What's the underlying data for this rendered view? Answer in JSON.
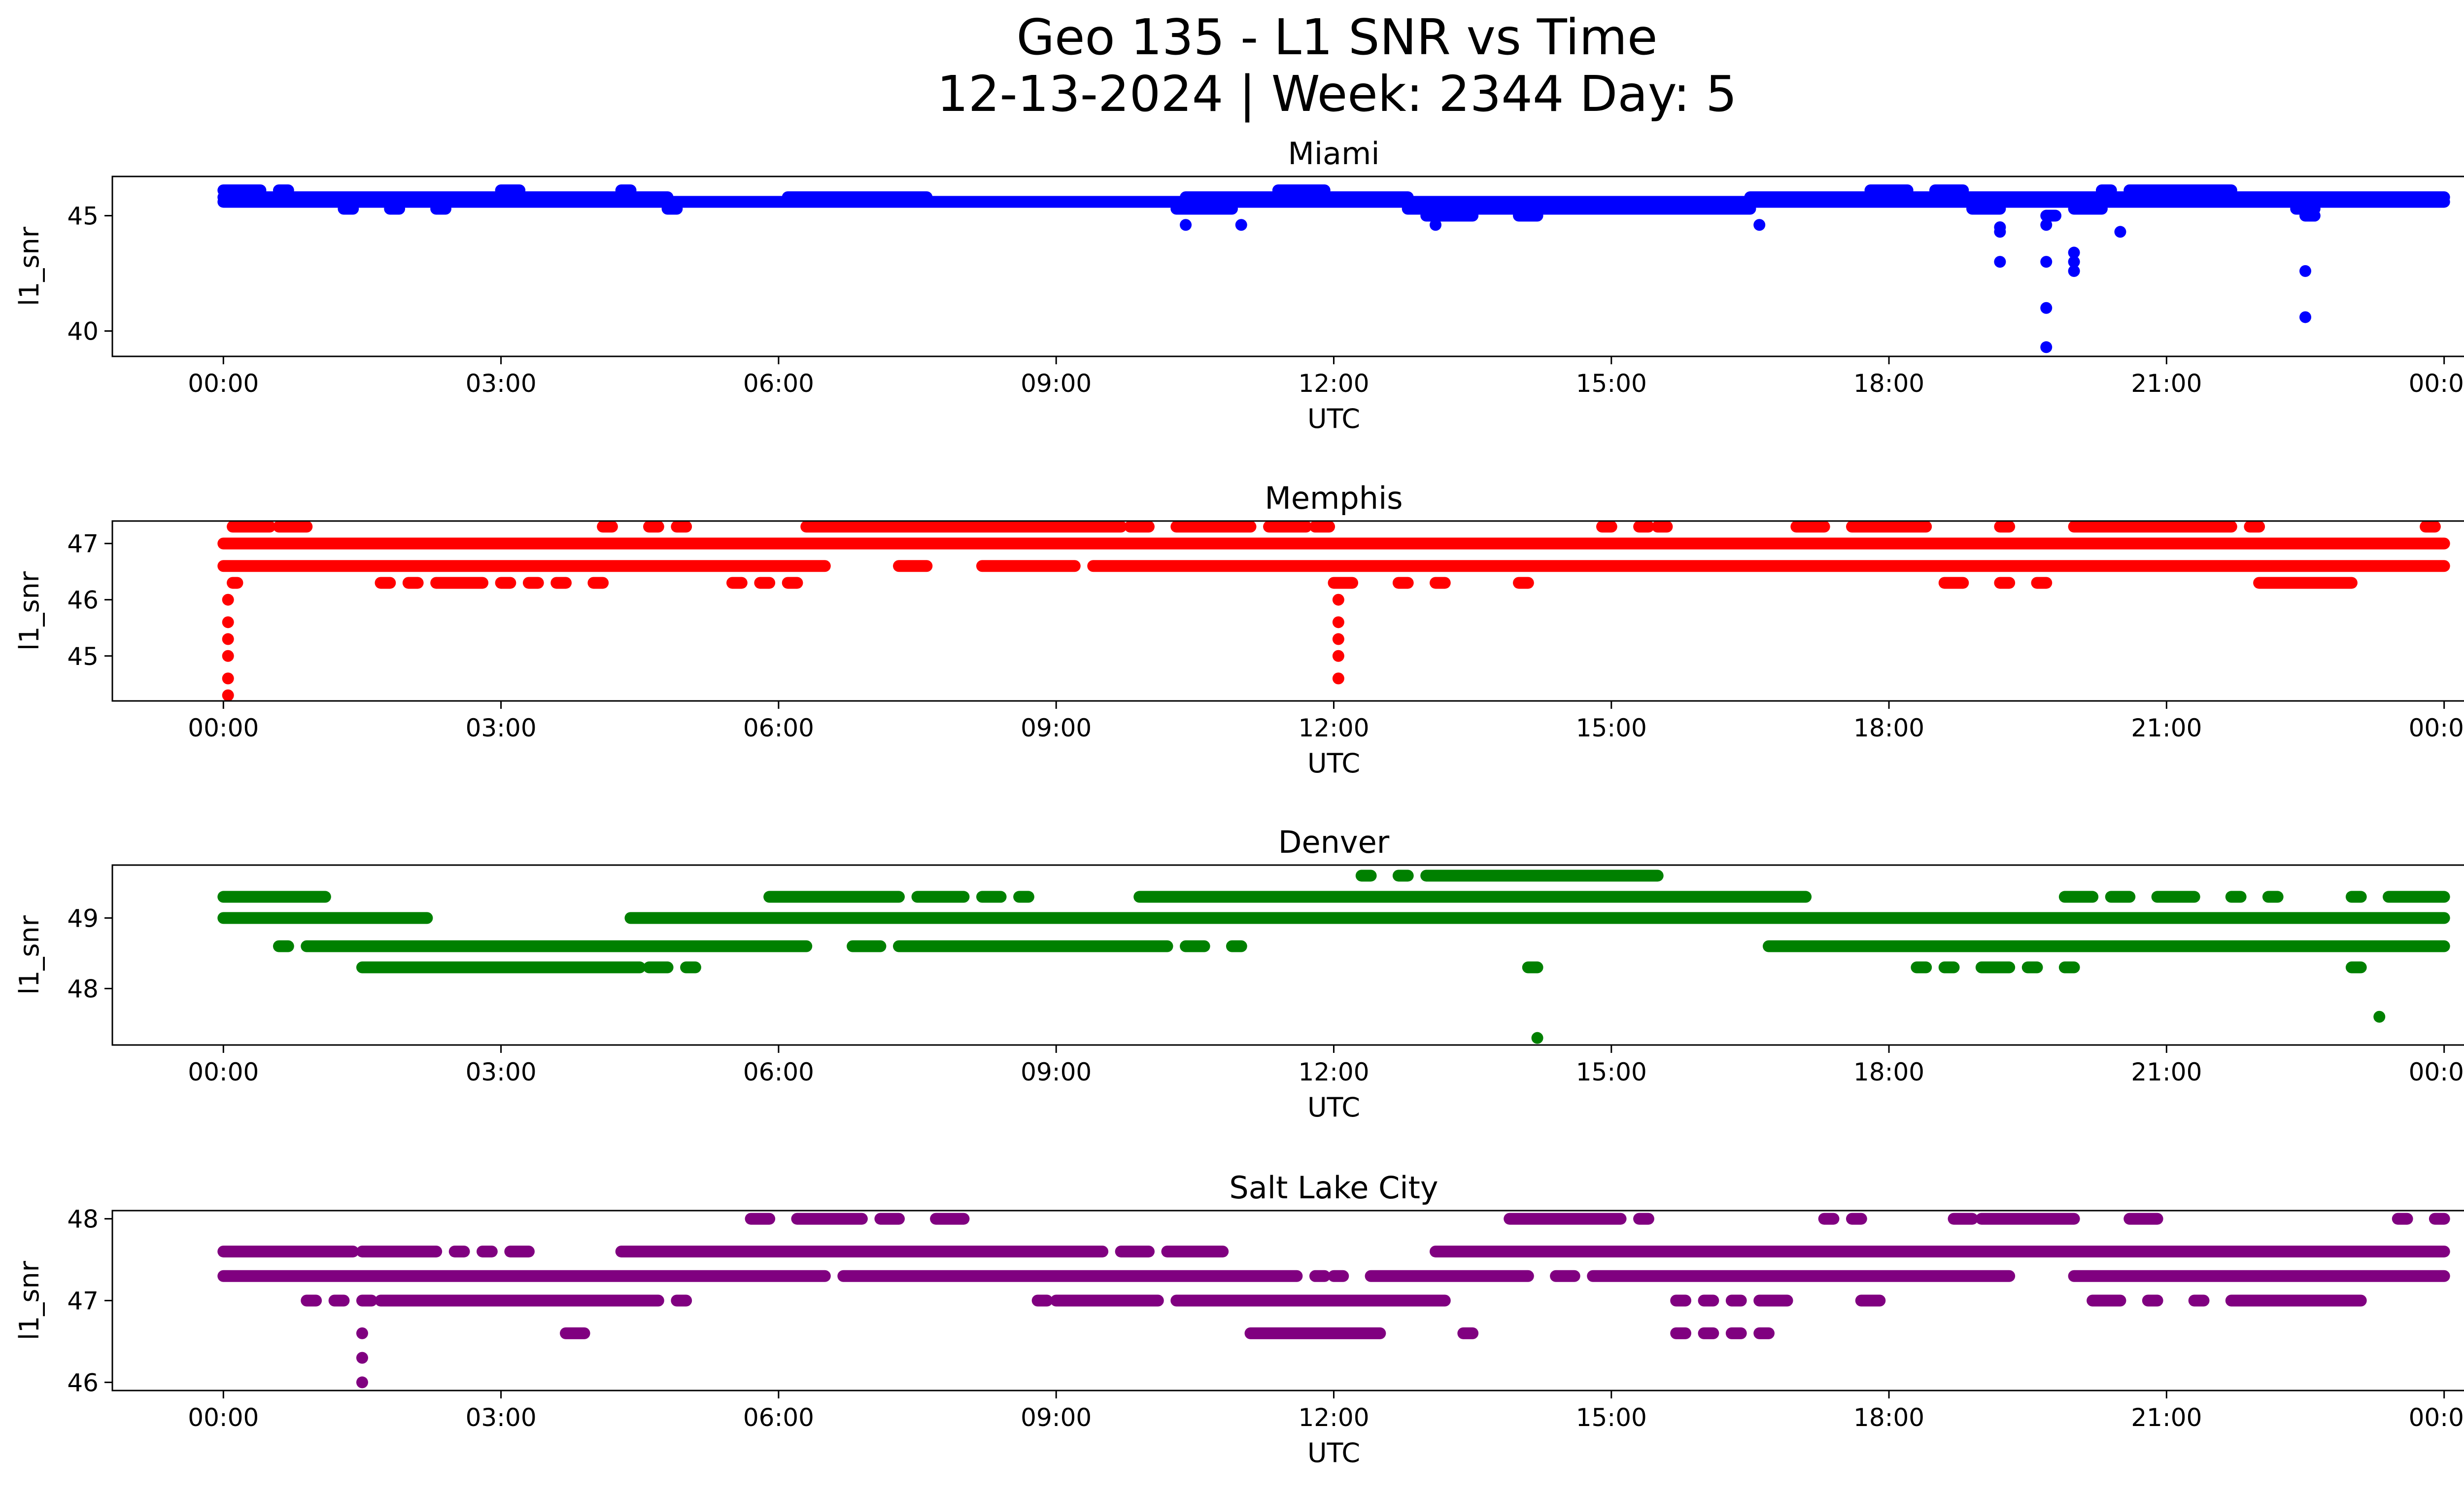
{
  "chart_data": {
    "type": "scatter",
    "title": "Geo 135 - L1 SNR vs Time",
    "subtitle": "12-13-2024 | Week: 2344 Day: 5",
    "xlabel": "UTC",
    "ylabel": "l1_snr",
    "xlim": [
      -1.2,
      25.2
    ],
    "x_ticks": [
      0,
      3,
      6,
      9,
      12,
      15,
      18,
      21,
      24
    ],
    "x_tick_labels": [
      "00:00",
      "03:00",
      "06:00",
      "09:00",
      "12:00",
      "15:00",
      "18:00",
      "21:00",
      "00:00"
    ],
    "series": [
      {
        "name": "Miami",
        "color": "#0000ff",
        "ylim": [
          38.9,
          46.7
        ],
        "y_ticks": [
          40,
          45
        ],
        "y_tick_labels": [
          "40",
          "45"
        ],
        "bands": [
          {
            "y": 46.1,
            "ranges": [
              [
                0.0,
                0.4
              ],
              [
                0.6,
                0.7
              ],
              [
                3.0,
                3.2
              ],
              [
                4.3,
                4.4
              ],
              [
                11.4,
                11.9
              ],
              [
                17.8,
                18.2
              ],
              [
                18.5,
                18.8
              ],
              [
                20.3,
                20.4
              ],
              [
                20.6,
                21.7
              ]
            ]
          },
          {
            "y": 45.8,
            "ranges": [
              [
                0.0,
                4.8
              ],
              [
                6.1,
                7.6
              ],
              [
                10.4,
                12.8
              ],
              [
                16.5,
                24.0
              ]
            ]
          },
          {
            "y": 45.6,
            "ranges": [
              [
                0.0,
                24.0
              ]
            ]
          },
          {
            "y": 45.3,
            "ranges": [
              [
                1.3,
                1.4
              ],
              [
                1.8,
                1.9
              ],
              [
                2.3,
                2.4
              ],
              [
                4.8,
                4.9
              ],
              [
                10.3,
                10.9
              ],
              [
                12.8,
                16.5
              ],
              [
                18.9,
                19.2
              ],
              [
                20.0,
                20.3
              ],
              [
                22.4,
                22.6
              ]
            ]
          },
          {
            "y": 45.0,
            "ranges": [
              [
                13.0,
                13.5
              ],
              [
                14.0,
                14.2
              ],
              [
                19.7,
                19.8
              ],
              [
                22.5,
                22.6
              ]
            ]
          }
        ],
        "points": [
          [
            10.4,
            44.6
          ],
          [
            11.0,
            44.6
          ],
          [
            13.1,
            44.6
          ],
          [
            16.6,
            44.6
          ],
          [
            19.2,
            44.5
          ],
          [
            19.2,
            44.3
          ],
          [
            19.2,
            43.0
          ],
          [
            19.7,
            44.6
          ],
          [
            19.7,
            43.0
          ],
          [
            19.7,
            41.0
          ],
          [
            19.7,
            39.3
          ],
          [
            20.0,
            43.4
          ],
          [
            20.0,
            43.0
          ],
          [
            20.0,
            42.6
          ],
          [
            20.5,
            44.3
          ],
          [
            22.5,
            42.6
          ],
          [
            22.5,
            40.6
          ]
        ]
      },
      {
        "name": "Memphis",
        "color": "#ff0000",
        "ylim": [
          44.2,
          47.4
        ],
        "y_ticks": [
          45,
          46,
          47
        ],
        "y_tick_labels": [
          "45",
          "46",
          "47"
        ],
        "bands": [
          {
            "y": 47.3,
            "ranges": [
              [
                0.1,
                0.5
              ],
              [
                0.6,
                0.9
              ],
              [
                4.1,
                4.2
              ],
              [
                4.6,
                4.7
              ],
              [
                4.9,
                5.0
              ],
              [
                6.3,
                9.7
              ],
              [
                9.8,
                10.0
              ],
              [
                10.3,
                11.1
              ],
              [
                11.3,
                11.7
              ],
              [
                11.8,
                11.95
              ],
              [
                14.9,
                15.0
              ],
              [
                15.3,
                15.4
              ],
              [
                15.5,
                15.6
              ],
              [
                17.0,
                17.3
              ],
              [
                17.6,
                18.4
              ],
              [
                19.2,
                19.3
              ],
              [
                20.0,
                21.7
              ],
              [
                21.9,
                22.0
              ],
              [
                23.8,
                23.9
              ]
            ]
          },
          {
            "y": 47.0,
            "ranges": [
              [
                0.0,
                24.0
              ]
            ]
          },
          {
            "y": 46.6,
            "ranges": [
              [
                0.0,
                6.5
              ],
              [
                7.3,
                7.6
              ],
              [
                8.2,
                9.2
              ],
              [
                9.4,
                24.0
              ]
            ]
          },
          {
            "y": 46.3,
            "ranges": [
              [
                0.1,
                0.15
              ],
              [
                1.7,
                1.8
              ],
              [
                2.0,
                2.1
              ],
              [
                2.3,
                2.8
              ],
              [
                3.0,
                3.1
              ],
              [
                3.3,
                3.4
              ],
              [
                3.6,
                3.7
              ],
              [
                4.0,
                4.1
              ],
              [
                5.5,
                5.6
              ],
              [
                5.8,
                5.9
              ],
              [
                6.1,
                6.2
              ],
              [
                12.0,
                12.2
              ],
              [
                12.7,
                12.8
              ],
              [
                13.1,
                13.2
              ],
              [
                14.0,
                14.1
              ],
              [
                18.6,
                18.8
              ],
              [
                19.2,
                19.3
              ],
              [
                19.6,
                19.7
              ],
              [
                22.0,
                23.0
              ]
            ]
          }
        ],
        "points": [
          [
            0.05,
            46.0
          ],
          [
            0.05,
            45.6
          ],
          [
            0.05,
            45.3
          ],
          [
            0.05,
            45.0
          ],
          [
            0.05,
            44.6
          ],
          [
            0.05,
            44.3
          ],
          [
            12.05,
            46.0
          ],
          [
            12.05,
            45.6
          ],
          [
            12.05,
            45.3
          ],
          [
            12.05,
            45.0
          ],
          [
            12.05,
            44.6
          ]
        ]
      },
      {
        "name": "Denver",
        "color": "#008000",
        "ylim": [
          47.2,
          49.75
        ],
        "y_ticks": [
          48,
          49
        ],
        "y_tick_labels": [
          "48",
          "49"
        ],
        "bands": [
          {
            "y": 49.6,
            "ranges": [
              [
                12.3,
                12.4
              ],
              [
                12.7,
                12.8
              ],
              [
                13.0,
                15.5
              ]
            ]
          },
          {
            "y": 49.3,
            "ranges": [
              [
                0.0,
                1.1
              ],
              [
                5.9,
                7.3
              ],
              [
                7.5,
                8.0
              ],
              [
                8.2,
                8.4
              ],
              [
                8.6,
                8.7
              ],
              [
                9.9,
                17.1
              ],
              [
                19.9,
                20.2
              ],
              [
                20.4,
                20.6
              ],
              [
                20.9,
                21.3
              ],
              [
                21.7,
                21.8
              ],
              [
                22.1,
                22.2
              ],
              [
                23.0,
                23.1
              ],
              [
                23.4,
                24.0
              ]
            ]
          },
          {
            "y": 49.0,
            "ranges": [
              [
                0.0,
                2.2
              ],
              [
                4.4,
                24.0
              ]
            ]
          },
          {
            "y": 48.6,
            "ranges": [
              [
                0.6,
                0.7
              ],
              [
                0.9,
                6.3
              ],
              [
                6.8,
                7.1
              ],
              [
                7.3,
                10.2
              ],
              [
                10.4,
                10.6
              ],
              [
                10.9,
                11.0
              ],
              [
                16.7,
                24.0
              ]
            ]
          },
          {
            "y": 48.3,
            "ranges": [
              [
                1.5,
                4.5
              ],
              [
                4.6,
                4.8
              ],
              [
                5.0,
                5.1
              ],
              [
                14.1,
                14.2
              ],
              [
                18.3,
                18.4
              ],
              [
                18.6,
                18.7
              ],
              [
                19.0,
                19.3
              ],
              [
                19.5,
                19.6
              ],
              [
                19.9,
                20.0
              ],
              [
                23.0,
                23.1
              ]
            ]
          }
        ],
        "points": [
          [
            14.2,
            47.3
          ],
          [
            23.3,
            47.6
          ]
        ]
      },
      {
        "name": "Salt Lake City",
        "color": "#800080",
        "ylim": [
          45.9,
          48.1
        ],
        "y_ticks": [
          46,
          47,
          48
        ],
        "y_tick_labels": [
          "46",
          "47",
          "48"
        ],
        "bands": [
          {
            "y": 48.0,
            "ranges": [
              [
                5.7,
                5.9
              ],
              [
                6.2,
                6.9
              ],
              [
                7.1,
                7.3
              ],
              [
                7.7,
                8.0
              ],
              [
                13.9,
                15.1
              ],
              [
                15.3,
                15.4
              ],
              [
                17.3,
                17.4
              ],
              [
                17.6,
                17.7
              ],
              [
                18.7,
                18.9
              ],
              [
                19.0,
                20.0
              ],
              [
                20.6,
                20.9
              ],
              [
                23.5,
                23.6
              ],
              [
                23.9,
                24.0
              ]
            ]
          },
          {
            "y": 47.6,
            "ranges": [
              [
                0.0,
                1.4
              ],
              [
                1.5,
                2.3
              ],
              [
                2.5,
                2.6
              ],
              [
                2.8,
                2.9
              ],
              [
                3.1,
                3.3
              ],
              [
                4.3,
                9.5
              ],
              [
                9.7,
                10.0
              ],
              [
                10.2,
                10.8
              ],
              [
                13.1,
                24.0
              ]
            ]
          },
          {
            "y": 47.3,
            "ranges": [
              [
                0.0,
                6.5
              ],
              [
                6.7,
                11.6
              ],
              [
                11.8,
                11.9
              ],
              [
                12.0,
                12.1
              ],
              [
                12.4,
                14.1
              ],
              [
                14.4,
                14.6
              ],
              [
                14.8,
                19.3
              ],
              [
                20.0,
                24.0
              ]
            ]
          },
          {
            "y": 47.0,
            "ranges": [
              [
                0.9,
                1.0
              ],
              [
                1.2,
                1.3
              ],
              [
                1.5,
                1.6
              ],
              [
                1.7,
                4.7
              ],
              [
                4.9,
                5.0
              ],
              [
                8.8,
                8.9
              ],
              [
                9.0,
                10.1
              ],
              [
                10.3,
                13.2
              ],
              [
                15.7,
                15.8
              ],
              [
                16.0,
                16.1
              ],
              [
                16.3,
                16.4
              ],
              [
                16.6,
                16.9
              ],
              [
                17.7,
                17.9
              ],
              [
                20.2,
                20.5
              ],
              [
                20.8,
                20.9
              ],
              [
                21.3,
                21.4
              ],
              [
                21.7,
                23.1
              ]
            ]
          },
          {
            "y": 46.6,
            "ranges": [
              [
                3.7,
                3.9
              ],
              [
                11.1,
                12.5
              ],
              [
                13.4,
                13.5
              ],
              [
                15.7,
                15.8
              ],
              [
                16.0,
                16.1
              ],
              [
                16.3,
                16.4
              ],
              [
                16.6,
                16.7
              ]
            ]
          }
        ],
        "points": [
          [
            1.5,
            46.6
          ],
          [
            1.5,
            46.3
          ],
          [
            1.5,
            46.0
          ]
        ]
      }
    ]
  }
}
